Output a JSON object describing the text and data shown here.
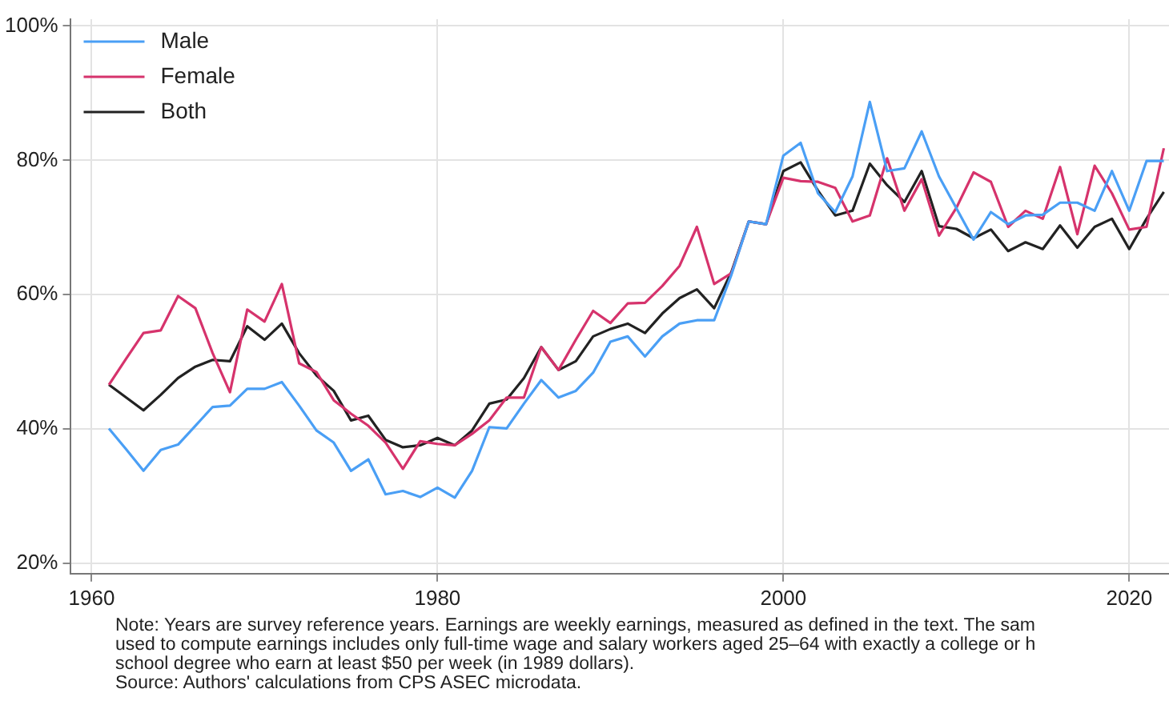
{
  "chart_data": {
    "type": "line",
    "x": [
      1961,
      1962,
      1963,
      1964,
      1965,
      1966,
      1967,
      1968,
      1969,
      1970,
      1971,
      1972,
      1973,
      1974,
      1975,
      1976,
      1977,
      1978,
      1979,
      1980,
      1981,
      1982,
      1983,
      1984,
      1985,
      1986,
      1987,
      1988,
      1989,
      1990,
      1991,
      1992,
      1993,
      1994,
      1995,
      1996,
      1997,
      1998,
      1999,
      2000,
      2001,
      2002,
      2003,
      2004,
      2005,
      2006,
      2007,
      2008,
      2009,
      2010,
      2011,
      2012,
      2013,
      2014,
      2015,
      2016,
      2017,
      2018,
      2019,
      2020,
      2021,
      2022
    ],
    "series": [
      {
        "name": "Male",
        "color": "#4a9ff5",
        "values": [
          40.1,
          37,
          33.8,
          36.9,
          37.7,
          40.5,
          43.3,
          43.5,
          46,
          46,
          47,
          43.5,
          39.8,
          38,
          33.8,
          35.5,
          30.3,
          30.8,
          29.9,
          31.3,
          29.8,
          33.8,
          40.3,
          40.1,
          43.8,
          47.3,
          44.7,
          45.7,
          48.4,
          53,
          53.8,
          50.8,
          53.8,
          55.7,
          56.2,
          56.2,
          63,
          70.9,
          70.5,
          80.7,
          82.6,
          75.1,
          72.3,
          77.6,
          88.7,
          78.4,
          78.8,
          84.3,
          77.6,
          72.9,
          68.2,
          72.3,
          70.5,
          71.8,
          71.9,
          73.7,
          73.7,
          72.5,
          78.4,
          72.5,
          79.9,
          79.9
        ]
      },
      {
        "name": "Female",
        "color": "#d6336c",
        "values": [
          46.6,
          50.5,
          54.3,
          54.7,
          59.8,
          58,
          51.3,
          45.5,
          57.8,
          56,
          61.6,
          49.8,
          48.5,
          44.3,
          42.3,
          40.5,
          38,
          34.1,
          38.2,
          37.8,
          37.6,
          39.3,
          41.3,
          44.7,
          44.7,
          52.2,
          48.8,
          53.3,
          57.6,
          55.8,
          58.7,
          58.8,
          61.3,
          64.3,
          70.1,
          61.6,
          63.2,
          70.9,
          70.5,
          77.4,
          76.9,
          76.8,
          75.9,
          70.9,
          71.8,
          80.3,
          72.5,
          77.2,
          68.8,
          72.9,
          78.2,
          76.8,
          70.1,
          72.5,
          71.3,
          79,
          69,
          79.2,
          75.1,
          69.7,
          70.1,
          81.8
        ]
      },
      {
        "name": "Both",
        "color": "#222222",
        "values": [
          46.6,
          44.7,
          42.8,
          45.1,
          47.6,
          49.3,
          50.3,
          50.1,
          55.3,
          53.3,
          55.7,
          51.3,
          48,
          45.7,
          41.3,
          42,
          38.4,
          37.3,
          37.6,
          38.7,
          37.6,
          39.8,
          43.8,
          44.4,
          47.6,
          52.2,
          48.8,
          50.1,
          53.8,
          54.9,
          55.7,
          54.3,
          57.2,
          59.5,
          60.8,
          58,
          63.4,
          70.9,
          70.5,
          78.4,
          79.7,
          75.5,
          71.8,
          72.5,
          79.5,
          76.3,
          73.8,
          78.4,
          70.2,
          69.8,
          68.4,
          69.7,
          66.5,
          67.8,
          66.8,
          70.3,
          67,
          70.1,
          71.3,
          66.8,
          71.3,
          75.3
        ]
      }
    ],
    "xlim": [
      1958.8,
      2022.3
    ],
    "xticks": [
      1960,
      1980,
      2000,
      2020
    ],
    "ylim": [
      18.5,
      101
    ],
    "yticks": [
      {
        "value": 20,
        "label": "20%"
      },
      {
        "value": 40,
        "label": "40%"
      },
      {
        "value": 60,
        "label": "60%"
      },
      {
        "value": 80,
        "label": "80%"
      },
      {
        "value": 100,
        "label": "100%"
      }
    ],
    "grid": true,
    "legend": "top left",
    "marker": "none",
    "line_style": "solid",
    "annotations": [
      "Note: Years are survey reference years. Earnings are weekly earnings, measured as defined in the text. The sam",
      "used to compute earnings includes only full-time wage and salary workers aged 25–64 with exactly a college or h",
      "school degree who earn at least $50 per week (in 1989 dollars).",
      "Source: Authors' calculations from CPS ASEC microdata."
    ]
  }
}
